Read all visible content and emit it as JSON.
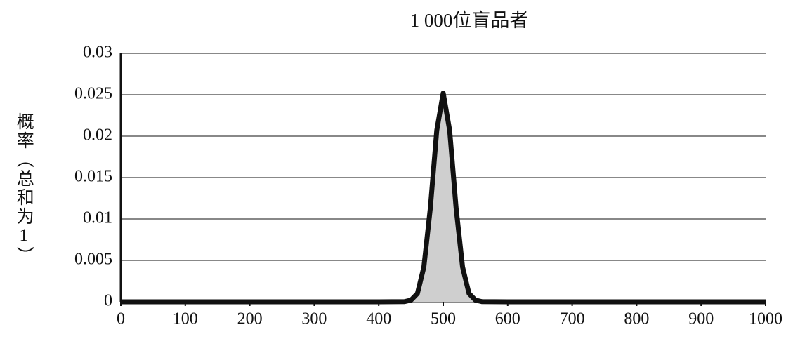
{
  "chart_data": {
    "type": "area",
    "title": "1 000位盲品者",
    "y_label": "概率（总和为1）",
    "x": [
      0,
      100,
      200,
      300,
      400,
      440,
      450,
      460,
      470,
      480,
      490,
      500,
      510,
      520,
      530,
      540,
      550,
      560,
      600,
      700,
      800,
      900,
      1000
    ],
    "series": [
      {
        "name": "概率",
        "color": "#111111",
        "fill": "#cfcfcf",
        "values": [
          0,
          0,
          0,
          0,
          0,
          2e-05,
          0.0002,
          0.001,
          0.0042,
          0.0113,
          0.0207,
          0.0252,
          0.0207,
          0.0113,
          0.0042,
          0.001,
          0.0002,
          2e-05,
          0,
          0,
          0,
          0,
          0
        ]
      }
    ],
    "xlim": [
      0,
      1000
    ],
    "xticks": [
      0,
      100,
      200,
      300,
      400,
      500,
      600,
      700,
      800,
      900,
      1000
    ],
    "ylim": [
      0,
      0.03
    ],
    "yticks": [
      0,
      0.005,
      0.01,
      0.015,
      0.02,
      0.025,
      0.03
    ],
    "grid": true
  }
}
